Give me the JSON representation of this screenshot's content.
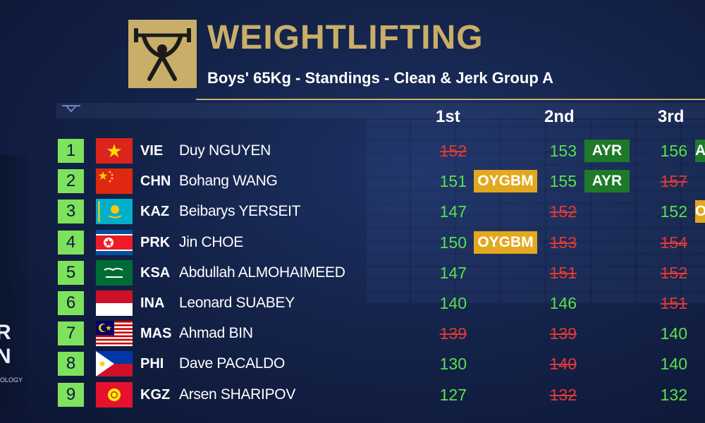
{
  "header": {
    "title": "WEIGHTLIFTING",
    "subtitle": "Boys' 65Kg - Standings - Clean & Jerk Group A"
  },
  "columns": {
    "first": "1st",
    "second": "2nd",
    "third": "3rd"
  },
  "side_mark": {
    "text": "R N",
    "subtext": "OLOGY"
  },
  "colors": {
    "gold": "#c8ae68",
    "rank_green": "#7ee25c",
    "good_lift": "#58e24a",
    "no_lift": "#e03a35",
    "ayr_badge": "#1e7a2a",
    "oygbm_badge": "#e2a81e"
  },
  "rows": [
    {
      "rank": "1",
      "flag": "vie-flag",
      "country": "VIE",
      "name": "Duy NGUYEN",
      "a1": {
        "v": "152",
        "s": "bad"
      },
      "a2": {
        "v": "153",
        "s": "good"
      },
      "r2": "AYR",
      "a3": {
        "v": "156",
        "s": "good"
      },
      "r3": "AYR"
    },
    {
      "rank": "2",
      "flag": "chn-flag",
      "country": "CHN",
      "name": "Bohang WANG",
      "a1": {
        "v": "151",
        "s": "good"
      },
      "r1": "OYGBM",
      "a2": {
        "v": "155",
        "s": "good"
      },
      "r2": "AYR",
      "a3": {
        "v": "157",
        "s": "bad"
      }
    },
    {
      "rank": "3",
      "flag": "kaz-flag",
      "country": "KAZ",
      "name": "Beibarys YERSEIT",
      "a1": {
        "v": "147",
        "s": "good"
      },
      "a2": {
        "v": "152",
        "s": "bad"
      },
      "a3": {
        "v": "152",
        "s": "good"
      },
      "r3": "OYGBM"
    },
    {
      "rank": "4",
      "flag": "prk-flag",
      "country": "PRK",
      "name": "Jin CHOE",
      "a1": {
        "v": "150",
        "s": "good"
      },
      "r1": "OYGBM",
      "a2": {
        "v": "153",
        "s": "bad"
      },
      "a3": {
        "v": "154",
        "s": "bad"
      }
    },
    {
      "rank": "5",
      "flag": "ksa-flag",
      "country": "KSA",
      "name": "Abdullah ALMOHAIMEED",
      "a1": {
        "v": "147",
        "s": "good"
      },
      "a2": {
        "v": "151",
        "s": "bad"
      },
      "a3": {
        "v": "152",
        "s": "bad"
      }
    },
    {
      "rank": "6",
      "flag": "ina-flag",
      "country": "INA",
      "name": "Leonard SUABEY",
      "a1": {
        "v": "140",
        "s": "good"
      },
      "a2": {
        "v": "146",
        "s": "good"
      },
      "a3": {
        "v": "151",
        "s": "bad"
      }
    },
    {
      "rank": "7",
      "flag": "mas-flag",
      "country": "MAS",
      "name": "Ahmad BIN",
      "a1": {
        "v": "139",
        "s": "bad"
      },
      "a2": {
        "v": "139",
        "s": "bad"
      },
      "a3": {
        "v": "140",
        "s": "good"
      }
    },
    {
      "rank": "8",
      "flag": "phi-flag",
      "country": "PHI",
      "name": "Dave PACALDO",
      "a1": {
        "v": "130",
        "s": "good"
      },
      "a2": {
        "v": "140",
        "s": "bad"
      },
      "a3": {
        "v": "140",
        "s": "good"
      }
    },
    {
      "rank": "9",
      "flag": "kgz-flag",
      "country": "KGZ",
      "name": "Arsen SHARIPOV",
      "a1": {
        "v": "127",
        "s": "good"
      },
      "a2": {
        "v": "132",
        "s": "bad"
      },
      "a3": {
        "v": "132",
        "s": "good"
      }
    }
  ]
}
